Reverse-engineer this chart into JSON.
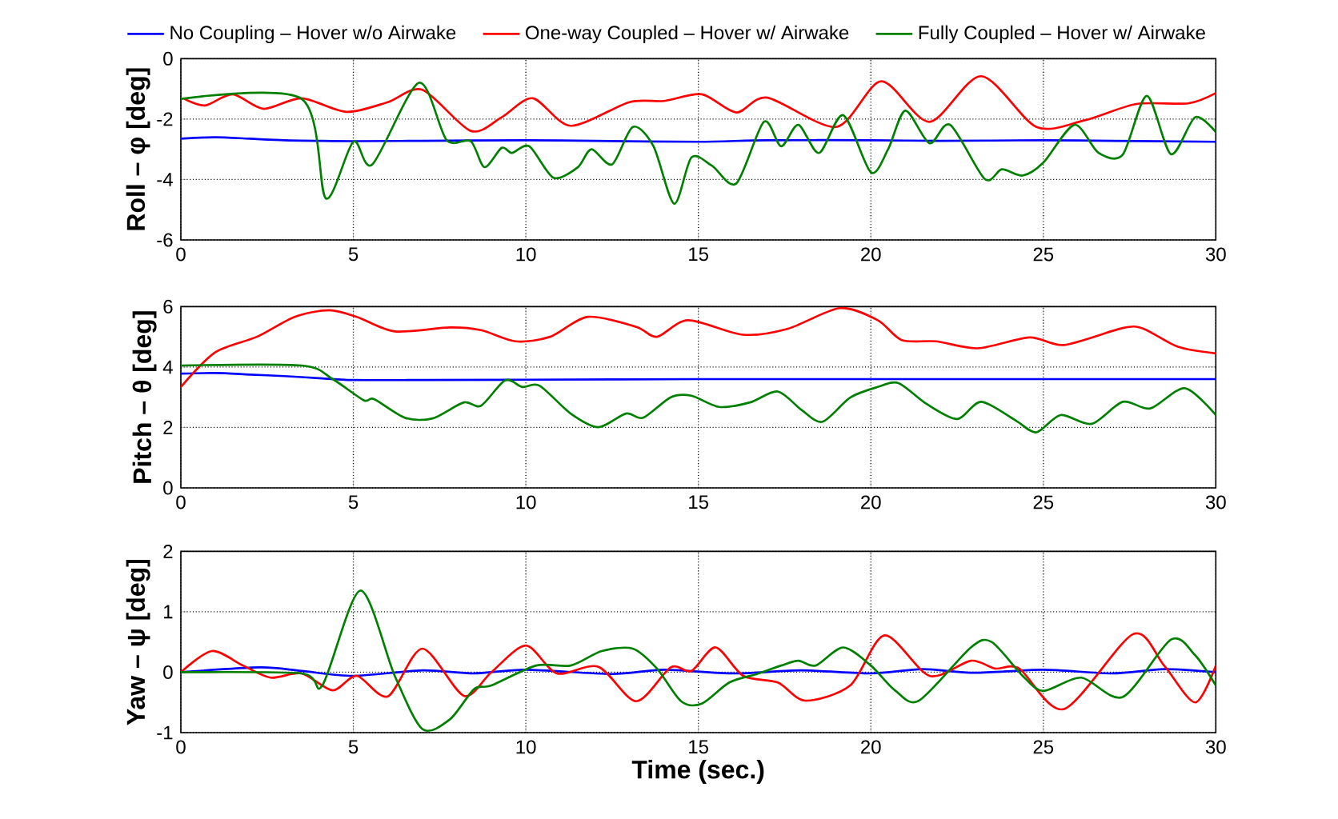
{
  "chart_data": [
    {
      "type": "line",
      "ylabel": "Roll – φ [deg]",
      "xlim": [
        0,
        30
      ],
      "ylim": [
        -6,
        0
      ],
      "xticks": [
        0,
        5,
        10,
        15,
        20,
        25,
        30
      ],
      "yticks": [
        -6,
        -4,
        -2,
        0
      ],
      "grid": true,
      "legend": "top",
      "series": [
        {
          "name": "No Coupling – Hover w/o Airwake",
          "color": "#0000ff",
          "x": [
            0,
            1,
            2,
            3,
            4,
            5,
            7,
            10,
            12,
            15,
            17,
            20,
            22,
            25,
            27,
            30
          ],
          "values": [
            -2.65,
            -2.6,
            -2.65,
            -2.7,
            -2.72,
            -2.73,
            -2.72,
            -2.7,
            -2.72,
            -2.75,
            -2.7,
            -2.7,
            -2.72,
            -2.7,
            -2.72,
            -2.75
          ]
        },
        {
          "name": "One-way Coupled – Hover w/ Airwake",
          "color": "#ff0000",
          "x": [
            0.1,
            0.7,
            1.5,
            2.4,
            3.5,
            4.8,
            6.0,
            7.0,
            8.4,
            9.3,
            10.2,
            11.3,
            13.0,
            14.0,
            15.1,
            16.1,
            17.0,
            19.0,
            20.3,
            21.7,
            23.2,
            24.8,
            26.2,
            27.7,
            29.2,
            30
          ],
          "values": [
            -1.33,
            -1.55,
            -1.18,
            -1.66,
            -1.31,
            -1.76,
            -1.44,
            -1.03,
            -2.39,
            -1.94,
            -1.31,
            -2.22,
            -1.44,
            -1.4,
            -1.18,
            -1.78,
            -1.29,
            -2.26,
            -0.75,
            -2.09,
            -0.58,
            -2.26,
            -2.04,
            -1.5,
            -1.48,
            -1.14
          ]
        },
        {
          "name": "Fully Coupled – Hover w/ Airwake",
          "color": "#008000",
          "x": [
            0,
            3.5,
            4.2,
            5.0,
            5.55,
            6.9,
            7.7,
            8.4,
            8.8,
            9.3,
            9.6,
            10.1,
            10.8,
            11.5,
            11.9,
            12.5,
            13.1,
            13.7,
            14.3,
            14.8,
            15.4,
            16.1,
            16.9,
            17.4,
            17.9,
            18.5,
            19.2,
            20.0,
            20.5,
            21.0,
            21.7,
            22.3,
            23.3,
            23.8,
            24.4,
            25.0,
            25.9,
            26.6,
            27.3,
            28.0,
            28.7,
            29.4,
            30
          ],
          "values": [
            -1.33,
            -1.33,
            -4.62,
            -2.75,
            -3.5,
            -0.8,
            -2.69,
            -2.73,
            -3.59,
            -2.95,
            -3.12,
            -2.9,
            -3.94,
            -3.6,
            -3.0,
            -3.5,
            -2.26,
            -2.9,
            -4.8,
            -3.27,
            -3.55,
            -4.13,
            -2.09,
            -2.9,
            -2.19,
            -3.12,
            -1.87,
            -3.76,
            -3.0,
            -1.72,
            -2.8,
            -2.19,
            -3.98,
            -3.66,
            -3.87,
            -3.44,
            -2.19,
            -3.12,
            -3.18,
            -1.23,
            -3.16,
            -1.94,
            -2.43
          ]
        }
      ]
    },
    {
      "type": "line",
      "ylabel": "Pitch – θ [deg]",
      "xlim": [
        0,
        30
      ],
      "ylim": [
        0,
        6
      ],
      "xticks": [
        0,
        5,
        10,
        15,
        20,
        25,
        30
      ],
      "yticks": [
        0,
        2,
        4,
        6
      ],
      "grid": true,
      "series": [
        {
          "color": "#0000ff",
          "x": [
            0,
            1,
            2,
            3,
            4,
            5,
            7,
            10,
            15,
            20,
            25,
            30
          ],
          "values": [
            3.78,
            3.8,
            3.75,
            3.7,
            3.63,
            3.57,
            3.57,
            3.58,
            3.6,
            3.6,
            3.6,
            3.6
          ]
        },
        {
          "color": "#ff0000",
          "x": [
            0,
            1.0,
            2.2,
            3.3,
            4.3,
            5.1,
            6.2,
            7.8,
            8.7,
            9.7,
            10.7,
            11.8,
            13.2,
            13.8,
            14.7,
            16.3,
            17.6,
            19.1,
            20.2,
            20.9,
            21.9,
            23.1,
            24.6,
            25.6,
            27.3,
            27.9,
            28.9,
            30
          ],
          "values": [
            3.34,
            4.49,
            5.0,
            5.66,
            5.88,
            5.66,
            5.18,
            5.31,
            5.22,
            4.85,
            5.0,
            5.66,
            5.33,
            5.0,
            5.55,
            5.07,
            5.27,
            5.95,
            5.55,
            4.89,
            4.85,
            4.62,
            4.98,
            4.73,
            5.29,
            5.27,
            4.67,
            4.45
          ]
        },
        {
          "color": "#008000",
          "x": [
            0,
            3.5,
            4.4,
            5.3,
            5.6,
            6.5,
            7.3,
            8.2,
            8.7,
            9.4,
            9.9,
            10.4,
            11.3,
            12.1,
            12.9,
            13.4,
            14.2,
            14.8,
            15.6,
            16.5,
            17.3,
            18.0,
            18.6,
            19.4,
            20.2,
            20.8,
            21.6,
            22.5,
            23.2,
            24.2,
            24.8,
            25.5,
            26.4,
            27.3,
            28.1,
            29.1,
            30
          ],
          "values": [
            4.05,
            4.05,
            3.6,
            2.9,
            2.94,
            2.32,
            2.3,
            2.83,
            2.72,
            3.56,
            3.34,
            3.38,
            2.46,
            2.01,
            2.46,
            2.32,
            3.0,
            3.05,
            2.68,
            2.83,
            3.19,
            2.57,
            2.19,
            2.99,
            3.34,
            3.47,
            2.79,
            2.28,
            2.85,
            2.23,
            1.84,
            2.41,
            2.12,
            2.85,
            2.63,
            3.3,
            2.41
          ]
        }
      ]
    },
    {
      "type": "line",
      "ylabel": "Yaw – ψ [deg]",
      "xlabel": "Time (sec.)",
      "xlim": [
        0,
        30
      ],
      "ylim": [
        -1,
        2
      ],
      "xticks": [
        0,
        5,
        10,
        15,
        20,
        25,
        30
      ],
      "yticks": [
        -1,
        0,
        1,
        2
      ],
      "grid": true,
      "series": [
        {
          "color": "#0000ff",
          "x": [
            0,
            2.3,
            3.5,
            5,
            7,
            8.5,
            10,
            12.5,
            14,
            16,
            18,
            20,
            21.5,
            23,
            25,
            27,
            28.5,
            30
          ],
          "values": [
            0,
            0.08,
            0.02,
            -0.06,
            0.03,
            -0.02,
            0.04,
            -0.03,
            0.04,
            -0.02,
            0.03,
            -0.02,
            0.05,
            -0.01,
            0.04,
            -0.02,
            0.05,
            0
          ]
        },
        {
          "color": "#ff0000",
          "x": [
            0,
            0.9,
            1.8,
            2.6,
            3.5,
            4.4,
            5.1,
            6.0,
            7.0,
            8.2,
            9.0,
            10.0,
            10.9,
            12.1,
            13.2,
            14.2,
            14.8,
            15.5,
            16.3,
            17.3,
            18.1,
            19.4,
            20.4,
            21.7,
            22.9,
            23.6,
            24.3,
            25.6,
            27.6,
            28.5,
            29.4,
            30
          ],
          "values": [
            0,
            0.35,
            0.11,
            -0.09,
            -0.02,
            -0.3,
            -0.06,
            -0.4,
            0.39,
            -0.39,
            0,
            0.44,
            -0.02,
            0.09,
            -0.48,
            0.08,
            0.02,
            0.41,
            -0.06,
            -0.17,
            -0.47,
            -0.22,
            0.61,
            -0.06,
            0.19,
            0.06,
            0.06,
            -0.61,
            0.63,
            0.11,
            -0.5,
            0.11
          ]
        },
        {
          "color": "#008000",
          "x": [
            0,
            3.5,
            4.1,
            5.2,
            6.2,
            7.0,
            7.8,
            8.5,
            9.0,
            10.3,
            11.3,
            12.2,
            13.1,
            13.8,
            14.5,
            15.1,
            15.9,
            16.7,
            17.4,
            17.9,
            18.4,
            19.2,
            20.0,
            20.7,
            21.4,
            22.9,
            23.5,
            24.4,
            25.0,
            26.1,
            27.3,
            28.7,
            29.4,
            30
          ],
          "values": [
            0,
            -0.02,
            -0.22,
            1.35,
            -0.06,
            -0.94,
            -0.78,
            -0.28,
            -0.22,
            0.11,
            0.11,
            0.35,
            0.39,
            0.06,
            -0.48,
            -0.52,
            -0.17,
            -0.03,
            0.11,
            0.19,
            0.11,
            0.41,
            0.11,
            -0.3,
            -0.47,
            0.41,
            0.5,
            -0.06,
            -0.31,
            -0.09,
            -0.41,
            0.54,
            0.28,
            -0.22
          ]
        }
      ]
    }
  ]
}
